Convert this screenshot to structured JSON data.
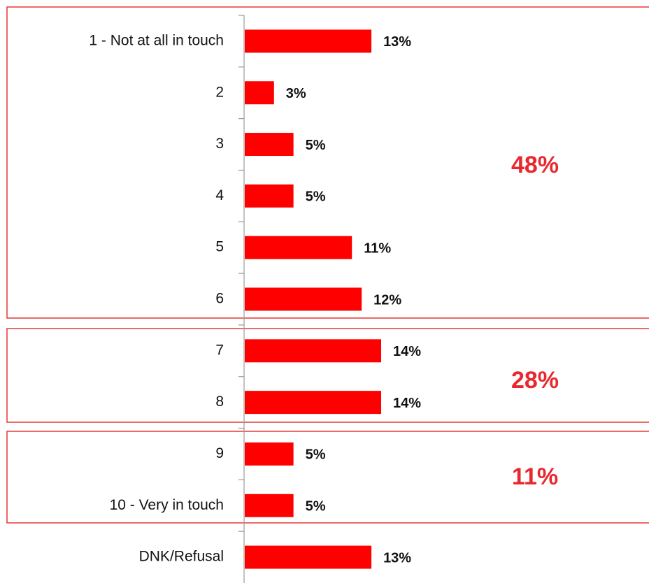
{
  "chart_data": {
    "type": "hbar",
    "categories": [
      "1 - Not at all in touch",
      "2",
      "3",
      "4",
      "5",
      "6",
      "7",
      "8",
      "9",
      "10 - Very in touch",
      "DNK/Refusal"
    ],
    "values": [
      13,
      3,
      5,
      5,
      11,
      12,
      14,
      14,
      5,
      5,
      13
    ],
    "value_labels": [
      "13%",
      "3%",
      "5%",
      "5%",
      "11%",
      "12%",
      "14%",
      "14%",
      "5%",
      "5%",
      "13%"
    ],
    "color": "#ff0000",
    "annotations": [
      {
        "text": "48%"
      },
      {
        "text": "28%"
      },
      {
        "text": "11%"
      }
    ],
    "annotation_color": "#e8282e"
  }
}
